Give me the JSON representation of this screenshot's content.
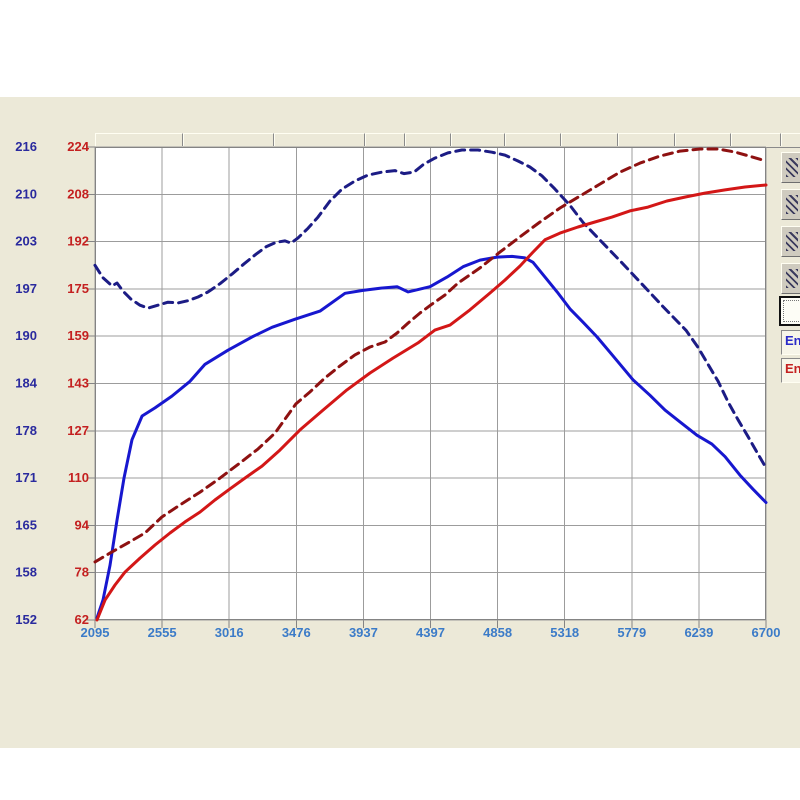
{
  "panel": {
    "bg": "#ece9d8",
    "page_bg": "#ffffff"
  },
  "chart_data": {
    "type": "line",
    "title": "",
    "xlabel": "",
    "ylabel": "",
    "grid": true,
    "grid_color": "#9c9c9c",
    "plot_bg": "#ffffff",
    "frame_color": "#848484",
    "x_range": [
      2095,
      6700
    ],
    "x_ticks": [
      "2095",
      "2555",
      "3016",
      "3476",
      "3937",
      "4397",
      "4858",
      "5318",
      "5779",
      "6239",
      "6700"
    ],
    "x_tick_color": "#3b7bc8",
    "axes": {
      "left_outer": {
        "name": "blue-scale",
        "color": "#2a2a9e",
        "range": [
          152,
          216
        ],
        "ticks": [
          "216",
          "210",
          "203",
          "197",
          "190",
          "184",
          "178",
          "171",
          "165",
          "158",
          "152"
        ]
      },
      "left_inner": {
        "name": "red-scale",
        "color": "#c42020",
        "range": [
          62,
          224
        ],
        "ticks": [
          "224",
          "208",
          "192",
          "175",
          "159",
          "143",
          "127",
          "110",
          "94",
          "78",
          "62"
        ]
      }
    },
    "legend_position": "right",
    "series": [
      {
        "id": "blue-solid",
        "axis": "left_outer",
        "color": "#1717cf",
        "dash": "solid",
        "width": 3,
        "values_at_x_ticks": [
          152,
          181,
          188,
          193,
          197,
          197,
          201,
          195,
          185,
          177,
          168
        ],
        "points": [
          [
            2109,
            152.3
          ],
          [
            2150,
            154.7
          ],
          [
            2198,
            159.4
          ],
          [
            2246,
            165.5
          ],
          [
            2294,
            171.2
          ],
          [
            2349,
            176.4
          ],
          [
            2418,
            179.6
          ],
          [
            2507,
            180.7
          ],
          [
            2623,
            182.3
          ],
          [
            2747,
            184.3
          ],
          [
            2850,
            186.6
          ],
          [
            3008,
            188.5
          ],
          [
            3173,
            190.3
          ],
          [
            3310,
            191.6
          ],
          [
            3468,
            192.7
          ],
          [
            3639,
            193.8
          ],
          [
            3811,
            196.2
          ],
          [
            3934,
            196.6
          ],
          [
            4051,
            196.9
          ],
          [
            4168,
            197.1
          ],
          [
            4243,
            196.4
          ],
          [
            4312,
            196.7
          ],
          [
            4394,
            197.1
          ],
          [
            4511,
            198.4
          ],
          [
            4621,
            199.8
          ],
          [
            4737,
            200.7
          ],
          [
            4854,
            201.1
          ],
          [
            4957,
            201.2
          ],
          [
            5046,
            201.0
          ],
          [
            5101,
            200.4
          ],
          [
            5183,
            198.4
          ],
          [
            5266,
            196.4
          ],
          [
            5355,
            194.1
          ],
          [
            5444,
            192.3
          ],
          [
            5540,
            190.3
          ],
          [
            5643,
            187.9
          ],
          [
            5787,
            184.5
          ],
          [
            5904,
            182.4
          ],
          [
            6007,
            180.4
          ],
          [
            6110,
            178.8
          ],
          [
            6226,
            177.0
          ],
          [
            6329,
            175.8
          ],
          [
            6419,
            174.1
          ],
          [
            6521,
            171.6
          ],
          [
            6611,
            169.7
          ],
          [
            6700,
            167.9
          ]
        ]
      },
      {
        "id": "navy-dashed",
        "axis": "left_outer",
        "color": "#1c1c85",
        "dash": "dashed",
        "width": 3,
        "values_at_x_ticks": [
          200,
          195,
          199,
          204,
          212,
          214,
          215,
          209,
          199,
          189,
          173
        ],
        "points": [
          [
            2095,
            200.0
          ],
          [
            2150,
            198.3
          ],
          [
            2212,
            197.2
          ],
          [
            2246,
            197.6
          ],
          [
            2287,
            196.5
          ],
          [
            2342,
            195.4
          ],
          [
            2404,
            194.6
          ],
          [
            2459,
            194.2
          ],
          [
            2527,
            194.6
          ],
          [
            2596,
            195.0
          ],
          [
            2665,
            194.9
          ],
          [
            2733,
            195.2
          ],
          [
            2802,
            195.7
          ],
          [
            2871,
            196.4
          ],
          [
            2953,
            197.5
          ],
          [
            3035,
            198.8
          ],
          [
            3118,
            200.2
          ],
          [
            3200,
            201.5
          ],
          [
            3269,
            202.5
          ],
          [
            3337,
            203.1
          ],
          [
            3399,
            203.3
          ],
          [
            3440,
            203.0
          ],
          [
            3488,
            203.7
          ],
          [
            3557,
            205.0
          ],
          [
            3625,
            206.5
          ],
          [
            3708,
            208.7
          ],
          [
            3790,
            210.3
          ],
          [
            3879,
            211.4
          ],
          [
            3968,
            212.2
          ],
          [
            4064,
            212.6
          ],
          [
            4154,
            212.8
          ],
          [
            4215,
            212.4
          ],
          [
            4284,
            212.6
          ],
          [
            4353,
            213.7
          ],
          [
            4428,
            214.5
          ],
          [
            4517,
            215.2
          ],
          [
            4613,
            215.6
          ],
          [
            4723,
            215.6
          ],
          [
            4819,
            215.3
          ],
          [
            4908,
            214.9
          ],
          [
            4998,
            214.1
          ],
          [
            5080,
            213.3
          ],
          [
            5162,
            212.1
          ],
          [
            5252,
            210.3
          ],
          [
            5355,
            208.1
          ],
          [
            5444,
            205.8
          ],
          [
            5581,
            203.0
          ],
          [
            5718,
            200.2
          ],
          [
            5856,
            197.3
          ],
          [
            5993,
            194.4
          ],
          [
            6151,
            191.2
          ],
          [
            6233,
            188.9
          ],
          [
            6302,
            186.6
          ],
          [
            6371,
            184.3
          ],
          [
            6440,
            181.5
          ],
          [
            6508,
            179.1
          ],
          [
            6577,
            176.8
          ],
          [
            6632,
            174.9
          ],
          [
            6700,
            172.6
          ]
        ]
      },
      {
        "id": "red-solid",
        "axis": "left_inner",
        "color": "#d31717",
        "dash": "solid",
        "width": 3,
        "values_at_x_ticks": [
          62,
          91,
          107,
          126,
          147,
          157,
          176,
          195,
          202,
          208,
          211
        ],
        "points": [
          [
            2109,
            62.0
          ],
          [
            2164,
            68.9
          ],
          [
            2232,
            74.0
          ],
          [
            2301,
            78.4
          ],
          [
            2404,
            83.2
          ],
          [
            2507,
            87.7
          ],
          [
            2610,
            91.8
          ],
          [
            2713,
            95.6
          ],
          [
            2816,
            99.0
          ],
          [
            2918,
            103.1
          ],
          [
            3021,
            106.9
          ],
          [
            3124,
            110.6
          ],
          [
            3241,
            114.7
          ],
          [
            3364,
            120.2
          ],
          [
            3502,
            127.1
          ],
          [
            3660,
            133.9
          ],
          [
            3824,
            140.8
          ],
          [
            3982,
            146.6
          ],
          [
            4140,
            151.7
          ],
          [
            4312,
            156.9
          ],
          [
            4428,
            161.3
          ],
          [
            4531,
            163.0
          ],
          [
            4668,
            168.2
          ],
          [
            4806,
            174.0
          ],
          [
            4908,
            178.4
          ],
          [
            5011,
            183.2
          ],
          [
            5101,
            188.0
          ],
          [
            5183,
            192.2
          ],
          [
            5286,
            194.5
          ],
          [
            5410,
            196.6
          ],
          [
            5526,
            198.3
          ],
          [
            5643,
            200.0
          ],
          [
            5766,
            202.1
          ],
          [
            5890,
            203.4
          ],
          [
            6020,
            205.5
          ],
          [
            6151,
            206.9
          ],
          [
            6281,
            208.2
          ],
          [
            6419,
            209.3
          ],
          [
            6556,
            210.3
          ],
          [
            6700,
            211.0
          ]
        ]
      },
      {
        "id": "red-dashed",
        "axis": "left_inner",
        "color": "#8e1111",
        "dash": "dashed",
        "width": 3,
        "values_at_x_ticks": [
          82,
          97,
          116,
          136,
          155,
          170,
          187,
          204,
          217,
          223,
          219
        ],
        "points": [
          [
            2095,
            81.9
          ],
          [
            2198,
            84.9
          ],
          [
            2321,
            88.4
          ],
          [
            2438,
            91.8
          ],
          [
            2555,
            97.3
          ],
          [
            2678,
            101.4
          ],
          [
            2816,
            105.8
          ],
          [
            2953,
            110.6
          ],
          [
            3090,
            115.8
          ],
          [
            3214,
            120.6
          ],
          [
            3330,
            126.0
          ],
          [
            3474,
            136.0
          ],
          [
            3570,
            140.1
          ],
          [
            3673,
            144.9
          ],
          [
            3776,
            149.0
          ],
          [
            3879,
            152.8
          ],
          [
            3982,
            155.5
          ],
          [
            4085,
            157.2
          ],
          [
            4168,
            160.3
          ],
          [
            4243,
            163.7
          ],
          [
            4325,
            167.1
          ],
          [
            4408,
            170.2
          ],
          [
            4497,
            173.3
          ],
          [
            4586,
            177.4
          ],
          [
            4737,
            182.6
          ],
          [
            4874,
            188.0
          ],
          [
            5011,
            193.2
          ],
          [
            5149,
            198.3
          ],
          [
            5286,
            203.1
          ],
          [
            5423,
            207.2
          ],
          [
            5560,
            211.3
          ],
          [
            5698,
            215.4
          ],
          [
            5835,
            218.5
          ],
          [
            5972,
            220.9
          ],
          [
            6110,
            222.6
          ],
          [
            6247,
            223.3
          ],
          [
            6370,
            223.3
          ],
          [
            6487,
            222.3
          ],
          [
            6604,
            220.6
          ],
          [
            6700,
            219.2
          ]
        ]
      }
    ]
  },
  "right_panel": {
    "style_buttons": [
      {
        "icon": "dash-pattern-icon"
      },
      {
        "icon": "dash-pattern-icon"
      },
      {
        "icon": "dash-pattern-icon"
      },
      {
        "icon": "dash-pattern-icon"
      }
    ],
    "legend_items": [
      {
        "label": "En",
        "color": "#2a2ac8"
      },
      {
        "label": "En",
        "color": "#c42020"
      }
    ]
  }
}
